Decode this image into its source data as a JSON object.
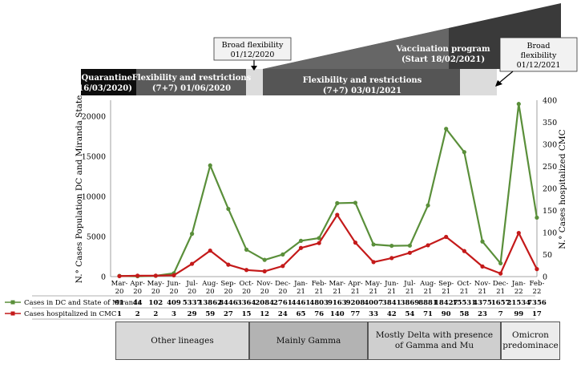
{
  "phases": {
    "quarantine": {
      "line1": "Quarantine",
      "line2": "(16/03/2020)"
    },
    "flex1": {
      "line1": "Flexibility and restrictions",
      "line2": "(7+7) 01/06/2020"
    },
    "broad1": {
      "line1": "Broad flexibility",
      "line2": "01/12/2020"
    },
    "vaccination": {
      "line1": "Vaccination program",
      "line2": "(Start 18/02/2021)"
    },
    "flex2": {
      "line1": "Flexibility and restrictions",
      "line2": "(7+7) 03/01/2021"
    },
    "broad2": {
      "line1": "Broad",
      "line2": "flexibility",
      "line3": "01/12/2021"
    }
  },
  "chart_data": {
    "type": "line",
    "ylabel": "N.° Cases Population DC and Miranda State",
    "ylabel_right": "N.° Cases hospitalized CMC",
    "ylim": [
      0,
      22000
    ],
    "ylim_right": [
      0,
      400
    ],
    "yticks": [
      "0",
      "5000",
      "10000",
      "15000",
      "20000"
    ],
    "yticks_right": [
      "0",
      "50",
      "100",
      "150",
      "200",
      "250",
      "300",
      "350",
      "400"
    ],
    "categories": [
      [
        "Mar-",
        "20"
      ],
      [
        "Apr-",
        "20"
      ],
      [
        "May-",
        "20"
      ],
      [
        "Jun-",
        "20"
      ],
      [
        "Jul-",
        "20"
      ],
      [
        "Aug-",
        "20"
      ],
      [
        "Sep-",
        "20"
      ],
      [
        "Oct-",
        "20"
      ],
      [
        "Nov-",
        "20"
      ],
      [
        "Dec-",
        "20"
      ],
      [
        "Jan-",
        "21"
      ],
      [
        "Feb-",
        "21"
      ],
      [
        "Mar-",
        "21"
      ],
      [
        "Apr-",
        "21"
      ],
      [
        "May-",
        "21"
      ],
      [
        "Jun-",
        "21"
      ],
      [
        "Jul-",
        "21"
      ],
      [
        "Aug-",
        "21"
      ],
      [
        "Sep-",
        "21"
      ],
      [
        "Oct-",
        "21"
      ],
      [
        "Nov-",
        "21"
      ],
      [
        "Dec-",
        "21"
      ],
      [
        "Jan-",
        "22"
      ],
      [
        "Feb-",
        "22"
      ]
    ],
    "series": [
      {
        "name": "Cases in DC and State of Miranda",
        "axis": "left",
        "color": "#5a8f3a",
        "values": [
          91,
          44,
          102,
          409,
          5337,
          13862,
          8446,
          3364,
          2084,
          2761,
          4461,
          4803,
          9163,
          9208,
          4007,
          3841,
          3869,
          8881,
          18427,
          15531,
          4375,
          1657,
          21534,
          7356
        ]
      },
      {
        "name": "Cases hospitalized in CMC",
        "axis": "right",
        "color": "#c41a1a",
        "values": [
          1,
          2,
          2,
          3,
          29,
          59,
          27,
          15,
          12,
          24,
          65,
          76,
          140,
          77,
          33,
          42,
          54,
          71,
          90,
          58,
          23,
          7,
          99,
          17
        ]
      }
    ]
  },
  "lineages": [
    {
      "label": "Other lineages",
      "color": "#d9d9d9"
    },
    {
      "label": "Mainly Gamma",
      "color": "#b3b3b3"
    },
    {
      "label": "Mostly Delta with presence of Gamma and Mu",
      "color": "#cfcfcf"
    },
    {
      "label": "Omicron predominace",
      "color": "#ececec"
    }
  ]
}
